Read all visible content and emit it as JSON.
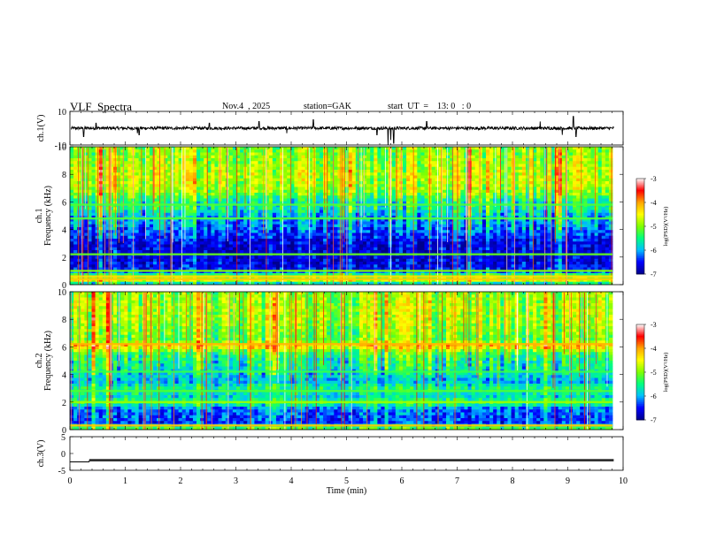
{
  "header": {
    "title": "VLF  Spectra",
    "date": "Nov.4  , 2025",
    "station": "station=GAK",
    "start": "start  UT  =    13: 0   : 0"
  },
  "chart_data": [
    {
      "type": "line",
      "panel": "ch1-waveform",
      "ylabel": "ch.1(V)",
      "ylim": [
        -10,
        10
      ],
      "yticks": [
        {
          "v": 10,
          "label": "10"
        },
        {
          "v": -10,
          "label": "-10"
        }
      ],
      "baseline": 0,
      "noise_amplitude": 1.5,
      "spikes": [
        {
          "t": 0.25,
          "v": -5
        },
        {
          "t": 0.47,
          "v": 3
        },
        {
          "t": 1.22,
          "v": -3
        },
        {
          "t": 1.25,
          "v": -4
        },
        {
          "t": 2.52,
          "v": 3
        },
        {
          "t": 3.42,
          "v": 4
        },
        {
          "t": 3.92,
          "v": -3
        },
        {
          "t": 4.4,
          "v": 5
        },
        {
          "t": 5.55,
          "v": -4
        },
        {
          "t": 5.75,
          "v": -10
        },
        {
          "t": 5.8,
          "v": -7
        },
        {
          "t": 5.85,
          "v": -9
        },
        {
          "t": 6.45,
          "v": 4
        },
        {
          "t": 8.5,
          "v": 4
        },
        {
          "t": 8.9,
          "v": -4
        },
        {
          "t": 9.1,
          "v": 7
        },
        {
          "t": 9.15,
          "v": -5
        }
      ]
    },
    {
      "type": "heatmap",
      "panel": "ch1-spectrogram",
      "ylabel": "ch.1\nFrequency  (kHz)",
      "ylim": [
        0,
        10
      ],
      "yticks": [
        0,
        2,
        4,
        6,
        8,
        10
      ],
      "colorbar": {
        "label": "log(PSD)(V²/Hz)",
        "ticks": [
          -3,
          -4,
          -5,
          -6,
          -7
        ],
        "range": [
          -7,
          -3
        ]
      },
      "colormap": [
        "#00008b",
        "#0000ff",
        "#00bfff",
        "#00ff80",
        "#80ff00",
        "#ffff00",
        "#ffa500",
        "#ff0000",
        "#ffffff"
      ],
      "profile": [
        [
          0.0,
          -6.2
        ],
        [
          0.3,
          -4.6
        ],
        [
          0.5,
          -4.9
        ],
        [
          0.7,
          -5.3
        ],
        [
          1.0,
          -6.5
        ],
        [
          2.0,
          -6.7
        ],
        [
          3.0,
          -6.6
        ],
        [
          4.0,
          -6.2
        ],
        [
          5.0,
          -5.9
        ],
        [
          5.6,
          -5.5
        ],
        [
          6.0,
          -5.6
        ],
        [
          6.5,
          -5.1
        ],
        [
          7.0,
          -4.8
        ],
        [
          8.0,
          -4.7
        ],
        [
          9.0,
          -4.9
        ],
        [
          10.0,
          -5.0
        ]
      ],
      "bands": [
        {
          "f": 0.4,
          "v": -4.2
        },
        {
          "f": 0.6,
          "v": -4.3
        },
        {
          "f": 1.0,
          "v": -5.0
        },
        {
          "f": 2.2,
          "v": -5.1
        },
        {
          "f": 4.8,
          "v": -5.2
        },
        {
          "f": 5.8,
          "v": -5.2
        }
      ]
    },
    {
      "type": "heatmap",
      "panel": "ch2-spectrogram",
      "ylabel": "ch.2\nFrequency  (kHz)",
      "ylim": [
        0,
        10
      ],
      "yticks": [
        0,
        2,
        4,
        6,
        8,
        10
      ],
      "colorbar": {
        "label": "log(PSD)(V²/Hz)",
        "ticks": [
          -3,
          -4,
          -5,
          -6,
          -7
        ],
        "range": [
          -7,
          -3
        ]
      },
      "colormap": [
        "#00008b",
        "#0000ff",
        "#00bfff",
        "#00ff80",
        "#80ff00",
        "#ffff00",
        "#ffa500",
        "#ff0000",
        "#ffffff"
      ],
      "profile": [
        [
          0.0,
          -5.0
        ],
        [
          0.5,
          -6.4
        ],
        [
          1.0,
          -6.3
        ],
        [
          1.5,
          -6.2
        ],
        [
          2.0,
          -5.3
        ],
        [
          2.4,
          -5.8
        ],
        [
          3.0,
          -5.5
        ],
        [
          3.5,
          -6.0
        ],
        [
          4.0,
          -5.8
        ],
        [
          4.6,
          -5.6
        ],
        [
          5.0,
          -5.6
        ],
        [
          5.6,
          -5.3
        ],
        [
          6.1,
          -4.2
        ],
        [
          6.5,
          -5.2
        ],
        [
          7.0,
          -5.1
        ],
        [
          8.0,
          -4.9
        ],
        [
          9.0,
          -4.9
        ],
        [
          10.0,
          -5.0
        ]
      ],
      "bands": [
        {
          "f": 0.3,
          "v": -4.2
        },
        {
          "f": 2.0,
          "v": -4.9
        },
        {
          "f": 2.8,
          "v": -5.2
        },
        {
          "f": 4.2,
          "v": -5.3
        },
        {
          "f": 6.2,
          "v": -4.1
        }
      ]
    },
    {
      "type": "line",
      "panel": "ch3-waveform",
      "ylabel": "ch.3(V)",
      "xlabel": "Time  (min)",
      "xlim": [
        0,
        10
      ],
      "xticks": [
        0,
        1,
        2,
        3,
        4,
        5,
        6,
        7,
        8,
        9,
        10
      ],
      "ylim": [
        -5,
        5
      ],
      "yticks": [
        {
          "v": 5,
          "label": "5"
        },
        {
          "v": 0,
          "label": "0"
        },
        {
          "v": -5,
          "label": "-5"
        }
      ],
      "level_before": -2.5,
      "level_after": -2.0,
      "step_time": 0.35,
      "ripple": 0.35,
      "end_time": 9.83
    }
  ]
}
